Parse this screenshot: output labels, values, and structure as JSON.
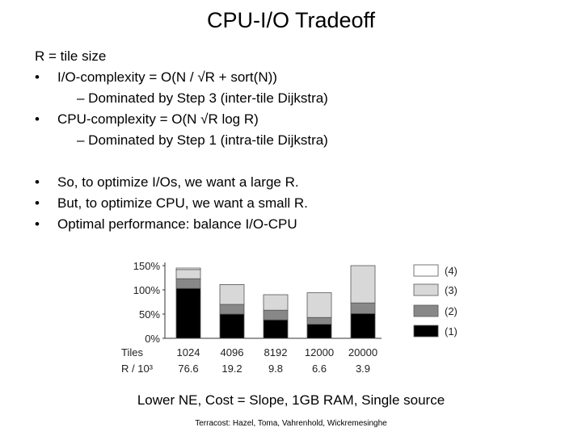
{
  "slide": {
    "title": "CPU-I/O Tradeoff",
    "lines": [
      "R = tile size",
      "I/O-complexity  = O(N / √R + sort(N))",
      "– Dominated by Step 3 (inter-tile Dijkstra)",
      "CPU-complexity = O(N √R log R)",
      "– Dominated by Step 1 (intra-tile Dijkstra)",
      "So, to optimize I/Os, we want a large R.",
      "But, to optimize CPU,  we want a small R.",
      "Optimal performance: balance I/O-CPU"
    ],
    "bullet_glyph": "•",
    "caption": "Lower NE, Cost = Slope, 1GB RAM, Single source",
    "footer": "Terracost: Hazel, Toma, Vahrenhold, Wickremesinghe"
  },
  "colors": {
    "step1": "#000000",
    "step2": "#888888",
    "step3": "#d8d8d8",
    "step4": "#ffffff",
    "outline": "#555555"
  },
  "chart_data": {
    "type": "bar",
    "stacked": true,
    "categories": [
      "1024",
      "4096",
      "8192",
      "12000",
      "20000"
    ],
    "row_labels": [
      "Tiles",
      "R / 10³"
    ],
    "r_values": [
      "76.6",
      "19.2",
      "9.8",
      "6.6",
      "3.9"
    ],
    "yticks": [
      "0%",
      "50%",
      "100%",
      "150%"
    ],
    "ylim": [
      0,
      150
    ],
    "series": [
      {
        "name": "(1)",
        "values": [
          103,
          50,
          38,
          29,
          51
        ]
      },
      {
        "name": "(2)",
        "values": [
          20,
          20,
          20,
          14,
          22
        ]
      },
      {
        "name": "(3)",
        "values": [
          19,
          41,
          32,
          51,
          77
        ]
      },
      {
        "name": "(4)",
        "values": [
          3,
          0,
          0,
          0,
          0
        ]
      }
    ],
    "legend_position": "right"
  }
}
